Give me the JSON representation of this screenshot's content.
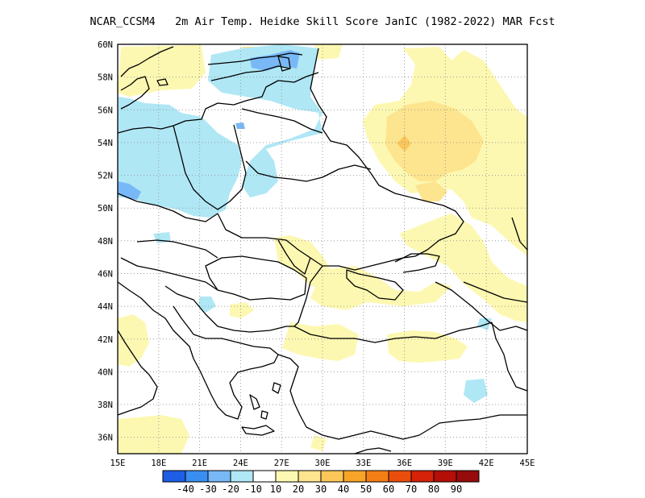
{
  "title": {
    "model": "NCAR_CCSM4",
    "description": "2m Air Temp. Heidke Skill Score JanIC (1982-2022) MAR Fcst"
  },
  "axes": {
    "lat_labels": [
      "60N",
      "58N",
      "56N",
      "54N",
      "52N",
      "50N",
      "48N",
      "46N",
      "44N",
      "42N",
      "40N",
      "38N",
      "36N"
    ],
    "lon_labels": [
      "15E",
      "18E",
      "21E",
      "24E",
      "27E",
      "30E",
      "33E",
      "36E",
      "39E",
      "42E",
      "45E"
    ],
    "lat_values": [
      60,
      58,
      56,
      54,
      52,
      50,
      48,
      46,
      44,
      42,
      40,
      38,
      36
    ],
    "lon_values": [
      15,
      18,
      21,
      24,
      27,
      30,
      33,
      36,
      39,
      42,
      45
    ],
    "lat_range": [
      35,
      60
    ],
    "lon_range": [
      15,
      45
    ],
    "grid": "dotted"
  },
  "colorbar": {
    "labels": [
      "-40",
      "-30",
      "-20",
      "-10",
      "10",
      "20",
      "30",
      "40",
      "50",
      "60",
      "70",
      "80",
      "90"
    ],
    "colors": [
      "#1e5ee5",
      "#3a8ef0",
      "#78b8f7",
      "#afe7f5",
      "#ffffff",
      "#fdf8b1",
      "#fde48e",
      "#fbc75a",
      "#f8a428",
      "#f37e15",
      "#ea4e0c",
      "#d62208",
      "#b30e08",
      "#960b0b"
    ]
  },
  "colors": {
    "light_blue": "#afe7f5",
    "mid_blue": "#78b8f7",
    "blue": "#3a8ef0",
    "pale_yellow": "#fdf8b1",
    "yellow": "#fde48e",
    "orange_yellow": "#fbc75a"
  }
}
